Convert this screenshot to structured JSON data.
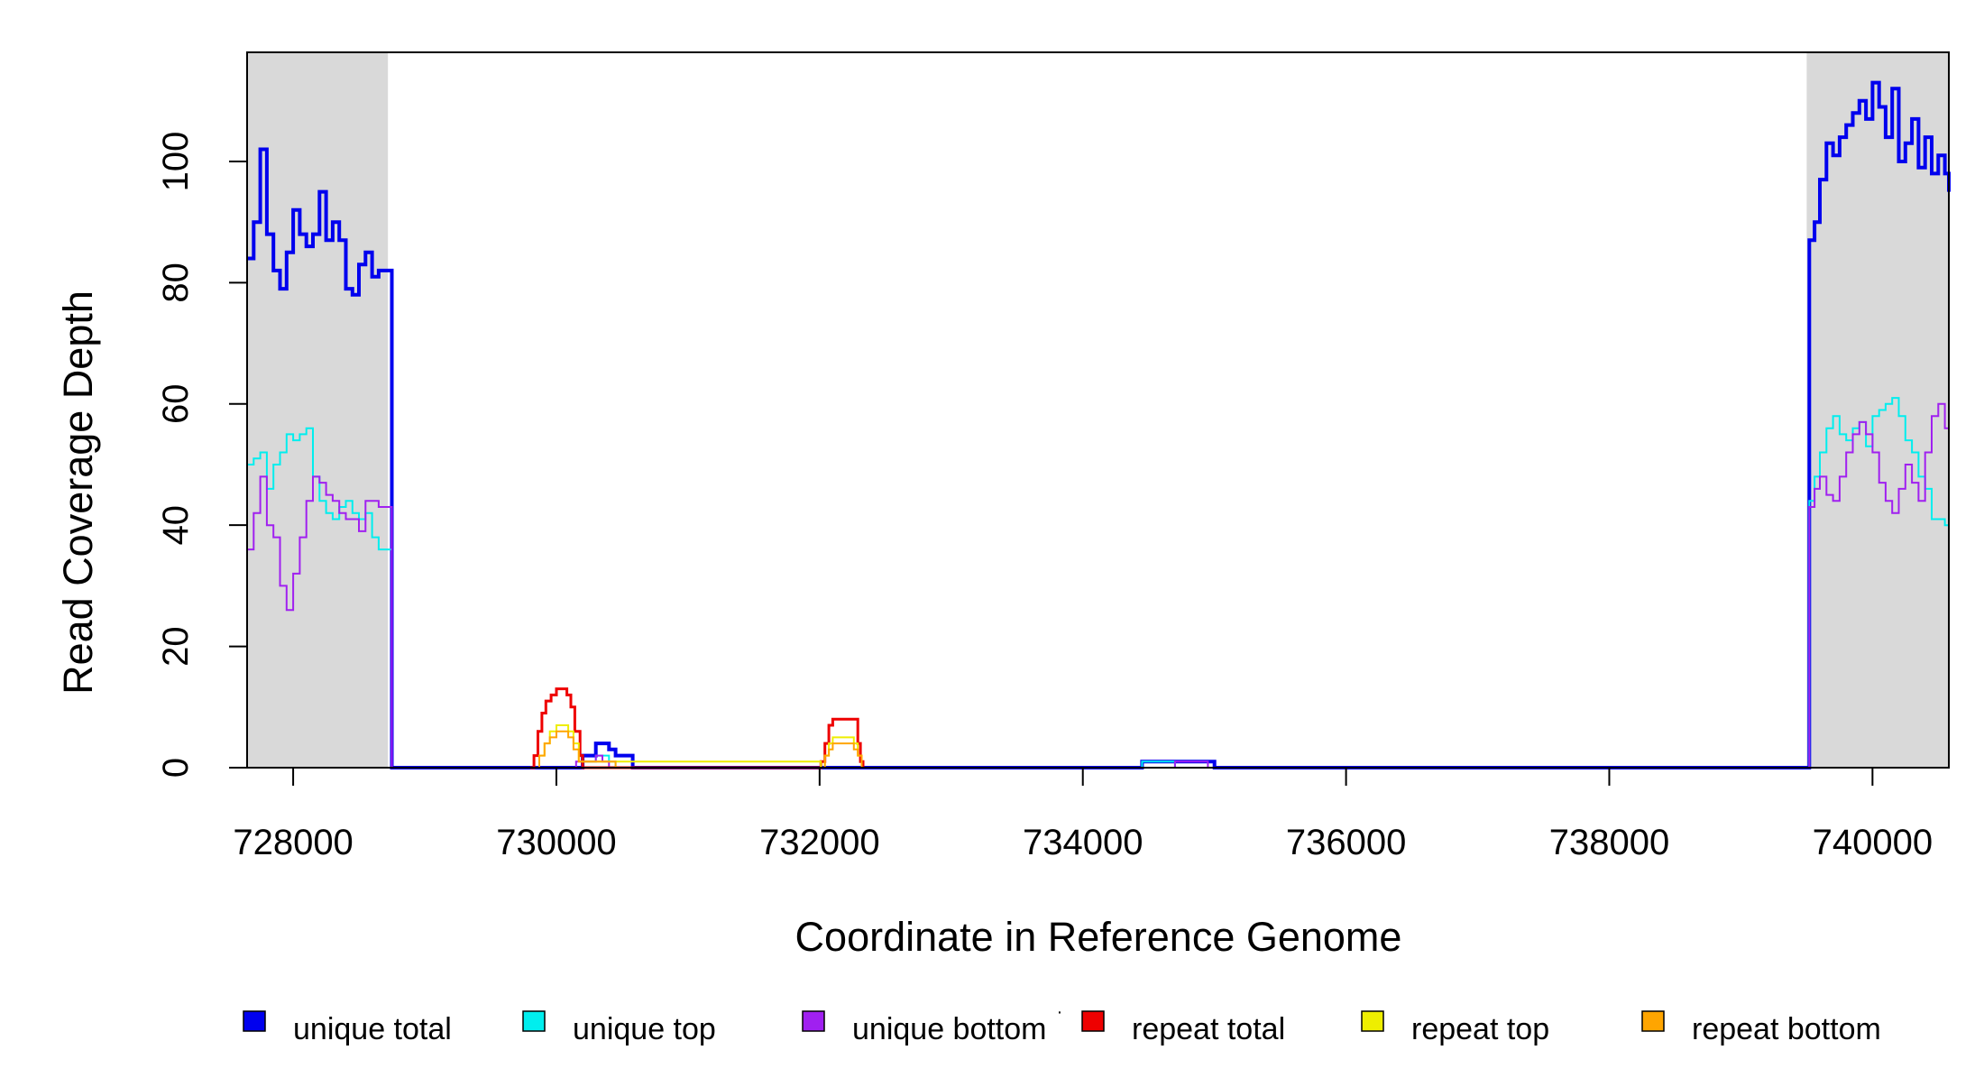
{
  "chart_data": {
    "type": "line",
    "title": "",
    "xlabel": "Coordinate in Reference Genome",
    "ylabel": "Read Coverage Depth",
    "xlim": [
      727650,
      740580
    ],
    "ylim": [
      0,
      118
    ],
    "x_ticks": [
      728000,
      730000,
      732000,
      734000,
      736000,
      738000,
      740000
    ],
    "y_ticks": [
      0,
      20,
      40,
      60,
      80,
      100
    ],
    "x_tick_labels": [
      "728000",
      "730000",
      "732000",
      "734000",
      "736000",
      "738000",
      "740000"
    ],
    "y_tick_labels": [
      "0",
      "20",
      "40",
      "60",
      "80",
      "100"
    ],
    "shaded_regions": [
      {
        "x0": 727650,
        "x1": 728720,
        "color": "#d9d9d9"
      },
      {
        "x0": 739500,
        "x1": 740580,
        "color": "#d9d9d9"
      }
    ],
    "legend_position": "bottom",
    "legend_marker_separator": "·",
    "series": [
      {
        "name": "unique total",
        "color": "#0000ee",
        "width": 4,
        "x": [
          727650,
          727700,
          727750,
          727800,
          727850,
          727900,
          727950,
          728000,
          728050,
          728100,
          728150,
          728200,
          728250,
          728300,
          728350,
          728400,
          728450,
          728500,
          728550,
          728600,
          728650,
          728700,
          728750,
          728760,
          729000,
          730000,
          730150,
          730200,
          730300,
          730320,
          730400,
          730450,
          730500,
          730550,
          730580,
          734000,
          734400,
          734450,
          734700,
          734750,
          734950,
          735000,
          739000,
          739500,
          739520,
          739560,
          739600,
          739650,
          739700,
          739750,
          739800,
          739850,
          739900,
          739950,
          740000,
          740050,
          740100,
          740150,
          740200,
          740250,
          740300,
          740350,
          740400,
          740450,
          740500,
          740550,
          740580
        ],
        "y": [
          84,
          90,
          102,
          88,
          82,
          79,
          85,
          92,
          88,
          86,
          88,
          95,
          87,
          90,
          87,
          79,
          78,
          83,
          85,
          81,
          82,
          82,
          0,
          0,
          0,
          0,
          0,
          2,
          4,
          4,
          3,
          2,
          2,
          2,
          0,
          0,
          0,
          1,
          1,
          1,
          1,
          0,
          0,
          0,
          87,
          90,
          97,
          103,
          101,
          104,
          106,
          108,
          110,
          107,
          113,
          109,
          104,
          112,
          100,
          103,
          107,
          99,
          104,
          98,
          101,
          98,
          95
        ]
      },
      {
        "name": "unique top",
        "color": "#00eeee",
        "width": 2,
        "x": [
          727650,
          727700,
          727750,
          727800,
          727850,
          727900,
          727950,
          728000,
          728050,
          728100,
          728150,
          728200,
          728250,
          728300,
          728350,
          728400,
          728450,
          728500,
          728550,
          728600,
          728650,
          728700,
          728750,
          728760,
          730100,
          730200,
          730300,
          730350,
          730400,
          730450,
          734000,
          734400,
          734450,
          734650,
          734700,
          739500,
          739520,
          739560,
          739600,
          739650,
          739700,
          739750,
          739800,
          739850,
          739900,
          739950,
          740000,
          740050,
          740100,
          740150,
          740200,
          740250,
          740300,
          740350,
          740400,
          740450,
          740500,
          740550,
          740580
        ],
        "y": [
          50,
          51,
          52,
          46,
          50,
          52,
          55,
          54,
          55,
          56,
          48,
          44,
          42,
          41,
          43,
          44,
          42,
          41,
          42,
          38,
          36,
          36,
          0,
          0,
          0,
          1,
          2,
          2,
          1,
          0,
          0,
          0,
          1,
          1,
          0,
          0,
          44,
          48,
          52,
          56,
          58,
          55,
          54,
          56,
          57,
          53,
          58,
          59,
          60,
          61,
          58,
          54,
          52,
          48,
          46,
          41,
          41,
          40,
          35
        ]
      },
      {
        "name": "unique bottom",
        "color": "#a020f0",
        "width": 2,
        "x": [
          727650,
          727700,
          727750,
          727800,
          727850,
          727900,
          727950,
          728000,
          728050,
          728100,
          728150,
          728200,
          728250,
          728300,
          728350,
          728400,
          728450,
          728500,
          728550,
          728600,
          728650,
          728700,
          728750,
          728760,
          730100,
          730150,
          730200,
          730300,
          730350,
          730400,
          734000,
          734400,
          734650,
          734700,
          734900,
          734950,
          739500,
          739520,
          739560,
          739600,
          739650,
          739700,
          739750,
          739800,
          739850,
          739900,
          739950,
          740000,
          740050,
          740100,
          740150,
          740200,
          740250,
          740300,
          740350,
          740400,
          740450,
          740500,
          740550,
          740580
        ],
        "y": [
          36,
          42,
          48,
          40,
          38,
          30,
          26,
          32,
          38,
          44,
          48,
          47,
          45,
          44,
          42,
          41,
          41,
          39,
          44,
          44,
          43,
          43,
          0,
          0,
          0,
          1,
          1,
          2,
          1,
          0,
          0,
          0,
          0,
          1,
          1,
          0,
          0,
          43,
          46,
          48,
          45,
          44,
          48,
          52,
          55,
          57,
          55,
          52,
          47,
          44,
          42,
          46,
          50,
          47,
          44,
          52,
          58,
          60,
          56,
          54
        ]
      },
      {
        "name": "repeat total",
        "color": "#ee0000",
        "width": 3,
        "x": [
          729800,
          729830,
          729860,
          729890,
          729920,
          729960,
          730000,
          730050,
          730080,
          730110,
          730140,
          730180,
          730200,
          731990,
          732010,
          732040,
          732070,
          732100,
          732200,
          732260,
          732290,
          732310,
          732330
        ],
        "y": [
          0,
          2,
          6,
          9,
          11,
          12,
          13,
          13,
          12,
          10,
          6,
          2,
          0,
          0,
          1,
          4,
          7,
          8,
          8,
          8,
          4,
          1,
          0
        ]
      },
      {
        "name": "repeat top",
        "color": "#eeee00",
        "width": 2,
        "x": [
          729830,
          729870,
          729910,
          729950,
          730000,
          730050,
          730090,
          730130,
          730170,
          732010,
          732040,
          732070,
          732100,
          732200,
          732260,
          732290,
          732320
        ],
        "y": [
          0,
          2,
          4,
          6,
          7,
          7,
          6,
          4,
          1,
          0,
          2,
          4,
          5,
          5,
          4,
          2,
          0
        ]
      },
      {
        "name": "repeat bottom",
        "color": "#ffa500",
        "width": 2,
        "x": [
          727650,
          729830,
          729870,
          729910,
          729950,
          730000,
          730050,
          730090,
          730130,
          730170,
          730250,
          730350,
          730450,
          730500,
          732010,
          732040,
          732070,
          732100,
          732200,
          732260,
          732290,
          732320,
          740580
        ],
        "y": [
          0,
          0,
          2,
          4,
          5,
          6,
          6,
          5,
          3,
          1,
          1,
          1,
          0,
          0,
          0,
          2,
          3,
          4,
          4,
          3,
          2,
          0,
          0
        ]
      }
    ]
  }
}
